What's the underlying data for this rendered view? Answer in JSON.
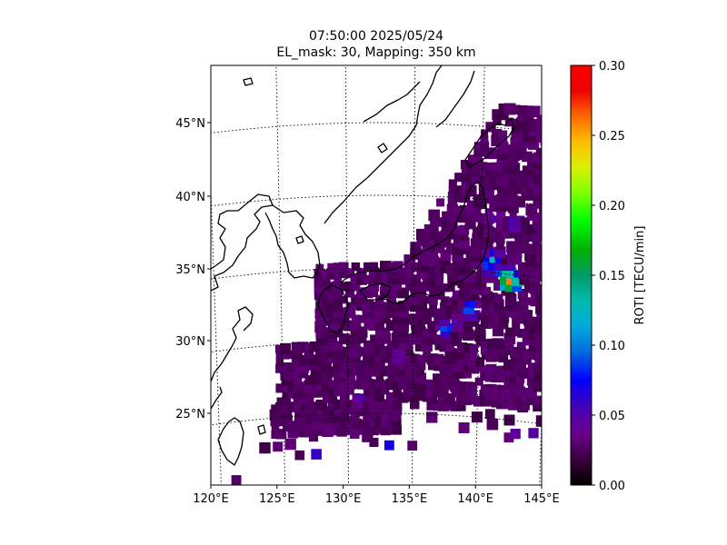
{
  "title": {
    "line1": "07:50:00 2025/05/24",
    "line2": "EL_mask: 30, Mapping: 350 km"
  },
  "colorbar": {
    "label": "ROTI [TECU/min]",
    "ticks": [
      "0.00",
      "0.05",
      "0.10",
      "0.15",
      "0.20",
      "0.25",
      "0.30"
    ],
    "range": [
      0,
      0.3
    ],
    "colormap": "nipy_spectral"
  },
  "map": {
    "lon_range": [
      120,
      145
    ],
    "lat_range": [
      20,
      49
    ],
    "lon_ticks": [
      {
        "lon": 120,
        "label": "120°E"
      },
      {
        "lon": 125,
        "label": "125°E"
      },
      {
        "lon": 130,
        "label": "130°E"
      },
      {
        "lon": 135,
        "label": "135°E"
      },
      {
        "lon": 140,
        "label": "140°E"
      },
      {
        "lon": 145,
        "label": "145°E"
      }
    ],
    "lat_ticks": [
      {
        "lat": 25,
        "label": "25°N"
      },
      {
        "lat": 30,
        "label": "30°N"
      },
      {
        "lat": 35,
        "label": "35°N"
      },
      {
        "lat": 40,
        "label": "40°N"
      },
      {
        "lat": 45,
        "label": "45°N"
      }
    ],
    "gridlines": "dotted",
    "coastline_color": "#000000",
    "background_roti": 0.02
  },
  "chart_data": {
    "type": "heatmap",
    "variable": "ROTI",
    "units": "TECU/min",
    "hotspots": [
      {
        "lon": 142.3,
        "lat": 34.6,
        "roti": 0.27
      },
      {
        "lon": 142.1,
        "lat": 34.9,
        "roti": 0.18
      },
      {
        "lon": 141.0,
        "lat": 36.0,
        "roti": 0.12
      },
      {
        "lon": 140.7,
        "lat": 35.5,
        "roti": 0.09
      },
      {
        "lon": 139.5,
        "lat": 32.5,
        "roti": 0.12
      },
      {
        "lon": 137.6,
        "lat": 31.0,
        "roti": 0.1
      },
      {
        "lon": 141.5,
        "lat": 35.1,
        "roti": 0.08
      },
      {
        "lon": 142.5,
        "lat": 38.5,
        "roti": 0.06
      },
      {
        "lon": 141.0,
        "lat": 39.0,
        "roti": 0.06
      }
    ],
    "moderate_regions": [
      {
        "lon": 138.5,
        "lat": 31.5,
        "roti": 0.05
      },
      {
        "lon": 134.0,
        "lat": 29.0,
        "roti": 0.05
      },
      {
        "lon": 131.0,
        "lat": 26.0,
        "roti": 0.05
      },
      {
        "lon": 127.5,
        "lat": 22.3,
        "roti": 0.05
      },
      {
        "lon": 133.2,
        "lat": 22.8,
        "roti": 0.06
      },
      {
        "lon": 143.0,
        "lat": 23.8,
        "roti": 0.05
      },
      {
        "lon": 144.5,
        "lat": 24.5,
        "roti": 0.05
      }
    ]
  }
}
